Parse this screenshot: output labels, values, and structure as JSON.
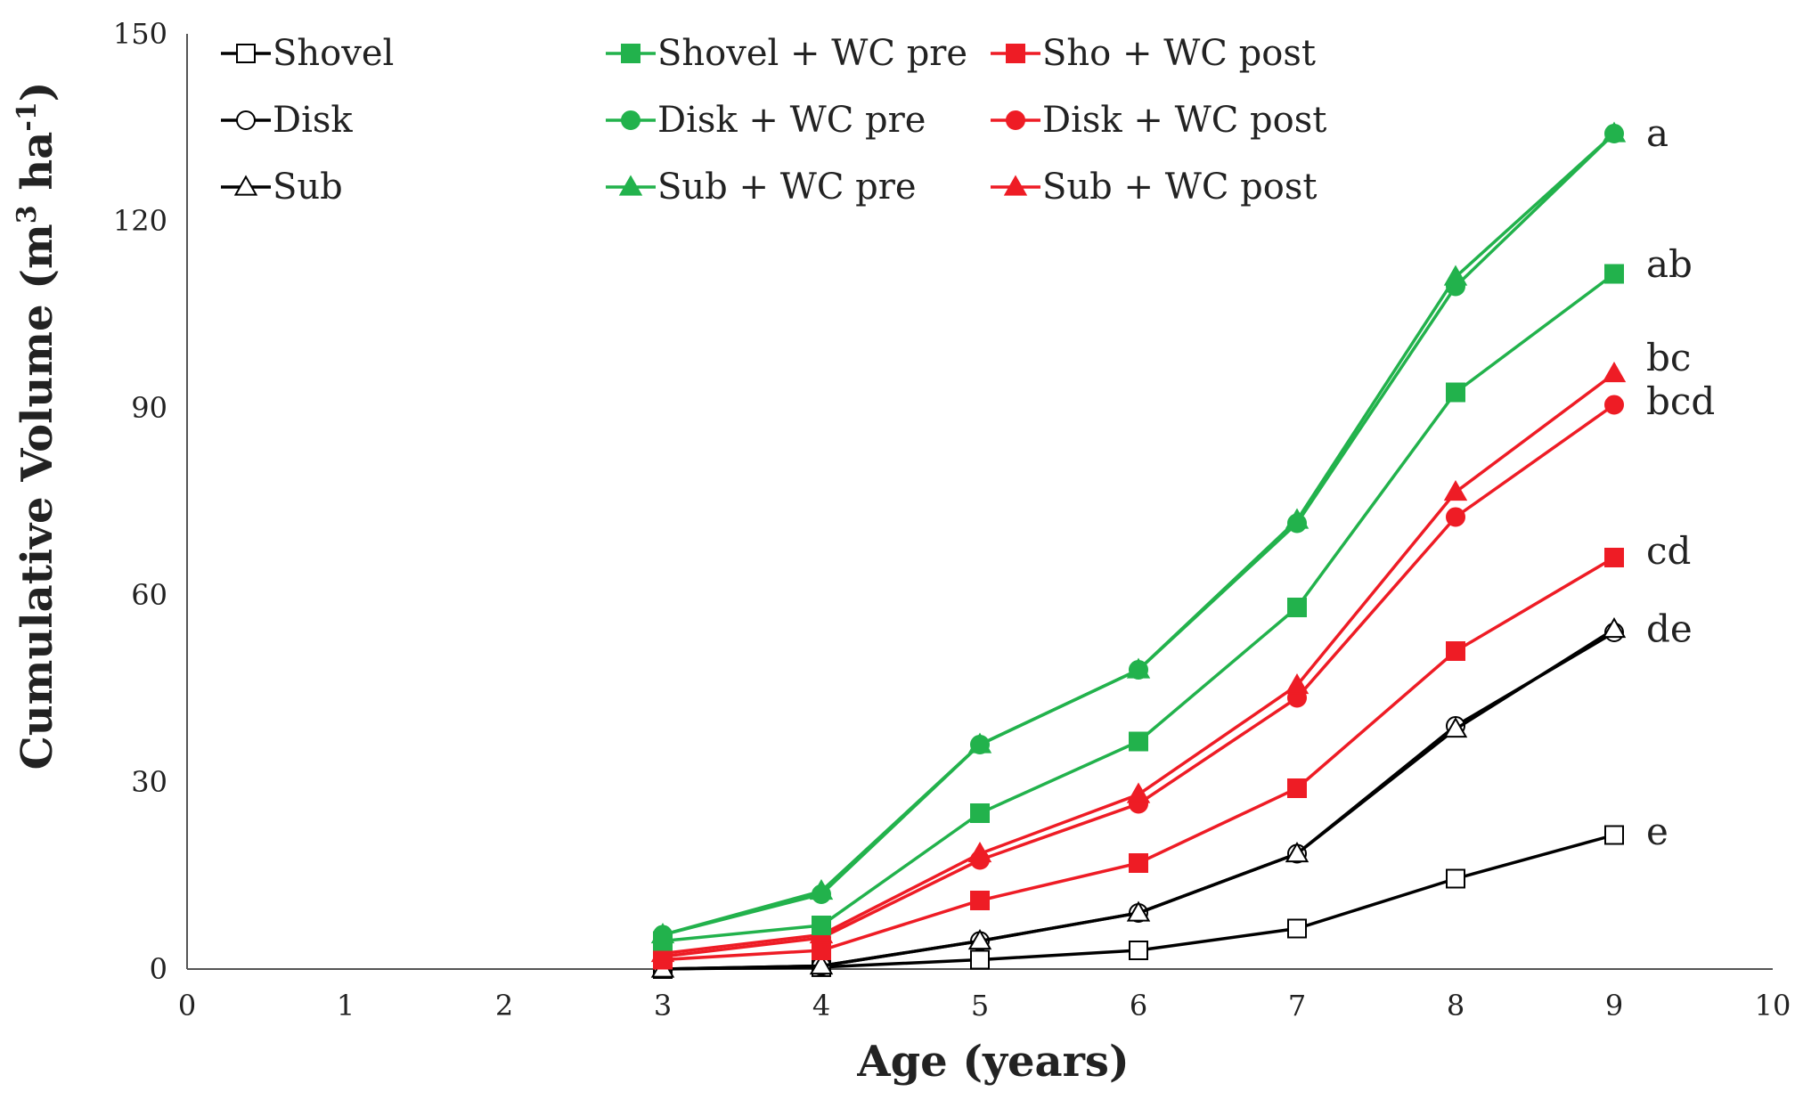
{
  "chart_data": {
    "type": "line",
    "title": "",
    "xlabel": "Age (years)",
    "ylabel_main": "Cumulative Volume (m",
    "ylabel_sup1": "3",
    "ylabel_mid": " ha",
    "ylabel_sup2": "-1",
    "ylabel_end": ")",
    "xlim": [
      0,
      10
    ],
    "ylim": [
      0,
      150
    ],
    "xticks": [
      0,
      1,
      2,
      3,
      4,
      5,
      6,
      7,
      8,
      9,
      10
    ],
    "yticks": [
      0,
      30,
      60,
      90,
      120,
      150
    ],
    "x": [
      3,
      4,
      5,
      6,
      7,
      8,
      9
    ],
    "series": [
      {
        "name": "Shovel",
        "marker": "square",
        "filled": false,
        "color": "#000000",
        "values": [
          0,
          0.3,
          1.5,
          3,
          6.5,
          14.5,
          21.5
        ]
      },
      {
        "name": "Disk",
        "marker": "circle",
        "filled": false,
        "color": "#000000",
        "values": [
          0,
          0.5,
          4.5,
          9,
          18.5,
          39,
          54
        ]
      },
      {
        "name": "Sub",
        "marker": "triangle",
        "filled": false,
        "color": "#000000",
        "values": [
          0,
          0.5,
          4.5,
          9,
          18.5,
          38.5,
          54.5
        ]
      },
      {
        "name": "Shovel + WC pre",
        "marker": "square",
        "filled": true,
        "color": "#22b24c",
        "values": [
          4.5,
          7,
          25,
          36.5,
          58,
          92.5,
          111.5
        ]
      },
      {
        "name": "Disk + WC pre",
        "marker": "circle",
        "filled": true,
        "color": "#22b24c",
        "values": [
          5.5,
          12,
          36,
          48,
          71.5,
          109.5,
          134
        ]
      },
      {
        "name": "Sub + WC pre",
        "marker": "triangle",
        "filled": true,
        "color": "#22b24c",
        "values": [
          5.5,
          12.5,
          36,
          48,
          72,
          111,
          134
        ]
      },
      {
        "name": "Sho + WC post",
        "marker": "square",
        "filled": true,
        "color": "#ee1c25",
        "values": [
          1.5,
          3,
          11,
          17,
          29,
          51,
          66
        ]
      },
      {
        "name": "Disk + WC post",
        "marker": "circle",
        "filled": true,
        "color": "#ee1c25",
        "values": [
          2,
          5,
          17.5,
          26.5,
          43.5,
          72.5,
          90.5
        ]
      },
      {
        "name": "Sub + WC post",
        "marker": "triangle",
        "filled": true,
        "color": "#ee1c25",
        "values": [
          2.5,
          5.5,
          18.5,
          28,
          45.5,
          76.5,
          95.5
        ]
      }
    ],
    "letters": [
      {
        "text": "a",
        "y": 134
      },
      {
        "text": "ab",
        "y": 113
      },
      {
        "text": "bc",
        "y": 98
      },
      {
        "text": "bcd",
        "y": 91
      },
      {
        "text": "cd",
        "y": 67
      },
      {
        "text": "de",
        "y": 54.5
      },
      {
        "text": "e",
        "y": 22
      }
    ],
    "legend": {
      "placement": "top-left"
    },
    "grid": false
  }
}
